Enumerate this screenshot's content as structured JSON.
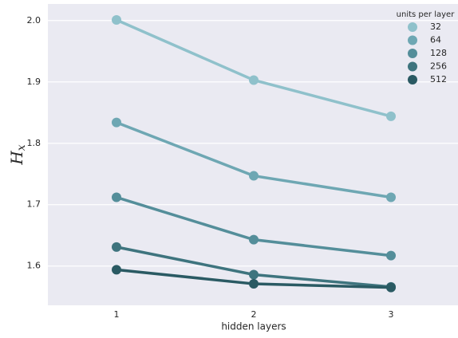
{
  "chart_data": {
    "type": "line",
    "xlabel": "hidden layers",
    "ylabel": "H",
    "ylabel_subscript": "x",
    "categories": [
      "1",
      "2",
      "3"
    ],
    "ylim": [
      1.536,
      2.027
    ],
    "yticks": [
      1.6,
      1.7,
      1.8,
      1.9,
      {
        "value": 2.0,
        "label": "2.0"
      }
    ],
    "grid": true,
    "legend_title": "units per layer",
    "legend_position": "upper right",
    "series": [
      {
        "name": "32",
        "color": "#8fc1cb",
        "values": [
          2.001,
          1.903,
          1.844
        ]
      },
      {
        "name": "64",
        "color": "#6ea7b3",
        "values": [
          1.834,
          1.747,
          1.712
        ]
      },
      {
        "name": "128",
        "color": "#548e9a",
        "values": [
          1.712,
          1.643,
          1.617
        ]
      },
      {
        "name": "256",
        "color": "#3e747e",
        "values": [
          1.631,
          1.586,
          1.566
        ]
      },
      {
        "name": "512",
        "color": "#2a5a63",
        "values": [
          1.594,
          1.571,
          1.565
        ]
      }
    ]
  }
}
